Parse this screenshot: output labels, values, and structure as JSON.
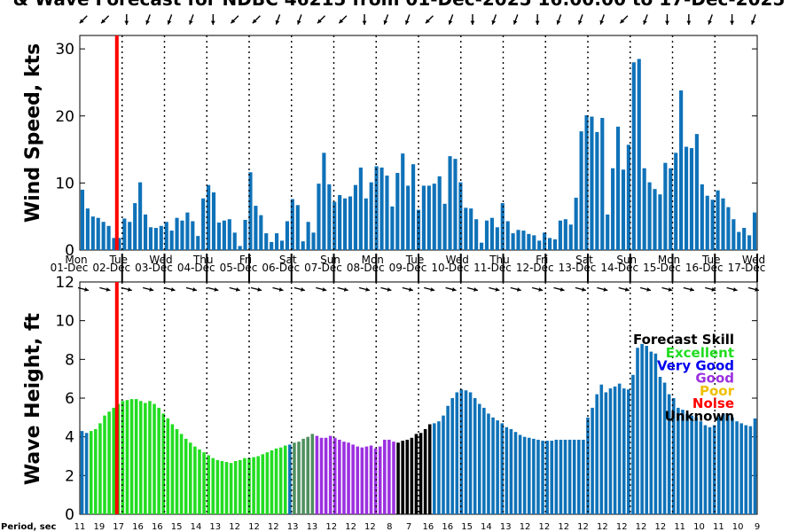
{
  "title": "& Wave Forecast for NDBC 46215 from 01-Dec-2025 16:00:00 to 17-Dec-2025",
  "period_label": "Period, sec",
  "colors": {
    "wind_bar": "#0f72b8",
    "now_line": "#ff0000",
    "excellent": "#22dd22",
    "very_good": "#0000ee",
    "good": "#9b30e0",
    "poor": "#f0c000",
    "noise": "#ff0000",
    "unknown": "#000000",
    "transition": "#4f8f5f"
  },
  "days": [
    {
      "name": "Mon",
      "date": "01-Dec"
    },
    {
      "name": "Tue",
      "date": "02-Dec"
    },
    {
      "name": "Wed",
      "date": "03-Dec"
    },
    {
      "name": "Thu",
      "date": "04-Dec"
    },
    {
      "name": "Fri",
      "date": "05-Dec"
    },
    {
      "name": "Sat",
      "date": "06-Dec"
    },
    {
      "name": "Sun",
      "date": "07-Dec"
    },
    {
      "name": "Mon",
      "date": "08-Dec"
    },
    {
      "name": "Tue",
      "date": "09-Dec"
    },
    {
      "name": "Wed",
      "date": "10-Dec"
    },
    {
      "name": "Thu",
      "date": "11-Dec"
    },
    {
      "name": "Fri",
      "date": "12-Dec"
    },
    {
      "name": "Sat",
      "date": "13-Dec"
    },
    {
      "name": "Sun",
      "date": "14-Dec"
    },
    {
      "name": "Mon",
      "date": "15-Dec"
    },
    {
      "name": "Tue",
      "date": "16-Dec"
    },
    {
      "name": "Wed",
      "date": "17-Dec"
    }
  ],
  "legend": {
    "title": "Forecast Skill",
    "items": [
      {
        "label": "Excellent",
        "color": "#22dd22"
      },
      {
        "label": "Very Good",
        "color": "#0000ee"
      },
      {
        "label": "Good",
        "color": "#9b30e0"
      },
      {
        "label": "Poor",
        "color": "#f0c000"
      },
      {
        "label": "Noise",
        "color": "#ff0000"
      },
      {
        "label": "Unknown",
        "color": "#000000"
      }
    ]
  },
  "periods": [
    "11",
    "19",
    "17",
    "16",
    "16",
    "15",
    "14",
    "13",
    "12",
    "12",
    "12",
    "13",
    "13",
    "12",
    "12",
    "12",
    "8",
    "7",
    "16",
    "16",
    "15",
    "14",
    "13",
    "12",
    "12",
    "12",
    "12",
    "12",
    "12",
    "12",
    "12",
    "11",
    "10",
    "11",
    "10",
    "9"
  ],
  "chart_data": [
    {
      "type": "bar",
      "name": "wind",
      "ylabel": "Wind Speed, kts",
      "ylim": [
        0,
        32
      ],
      "yticks": [
        0,
        10,
        20,
        30
      ],
      "x_start_hour": 16,
      "x_step_hours": 3,
      "now_hour": 21,
      "values": [
        9,
        6.2,
        5,
        4.8,
        4.2,
        3.6,
        1.8,
        1.8,
        4.7,
        4.2,
        7,
        10.1,
        5.3,
        3.4,
        3.3,
        3.6,
        4.2,
        2.9,
        4.8,
        4.4,
        5.6,
        4.3,
        2.1,
        7.7,
        9.7,
        8.6,
        4.1,
        4.4,
        4.6,
        2.6,
        0.6,
        4.5,
        11.6,
        6.6,
        5.2,
        2.5,
        1.2,
        2.5,
        1.4,
        4.3,
        7.6,
        6.7,
        1.3,
        4.2,
        2.6,
        9.9,
        14.5,
        9.8,
        7.2,
        8.2,
        7.7,
        8,
        9.7,
        12.3,
        7.7,
        10.1,
        12.5,
        12.3,
        11.1,
        6.5,
        11.5,
        14.4,
        9.6,
        12.8,
        6,
        9.6,
        9.6,
        9.9,
        11,
        6.9,
        14,
        13.6,
        10.1,
        6.3,
        6.2,
        4.6,
        1.1,
        4.4,
        4.8,
        3.4,
        7,
        4.3,
        2.5,
        3,
        2.9,
        2.4,
        2.2,
        1.4,
        2.6,
        1.8,
        1.6,
        4.4,
        4.6,
        3.8,
        7.8,
        17.7,
        20.1,
        19.9,
        17.6,
        19.7,
        5.3,
        12.2,
        18.4,
        12,
        15.7,
        28,
        28.5,
        12.2,
        10.1,
        9.1,
        8.3,
        13,
        12.2,
        14.5,
        23.8,
        15.4,
        15.2,
        17.3,
        9.8,
        8.1,
        7.5,
        8.9,
        7.7,
        6.4,
        4.6,
        2.7,
        3.3,
        2.2,
        5.6
      ],
      "directions": [
        45,
        45,
        0,
        20,
        20,
        20,
        0,
        45,
        45,
        20,
        20,
        45,
        45,
        0,
        20,
        20,
        45,
        20,
        0,
        20,
        20,
        0,
        20,
        20,
        20,
        45,
        20,
        0,
        0,
        20,
        0,
        20,
        20,
        45,
        20,
        20,
        0,
        45,
        20,
        0,
        20,
        20,
        20,
        0,
        20,
        20,
        20,
        20,
        20,
        0,
        45,
        20,
        20,
        20,
        0,
        45
      ]
    },
    {
      "type": "bar",
      "name": "waves",
      "ylabel": "Wave Height, ft",
      "ylim": [
        0,
        12
      ],
      "yticks": [
        0,
        2,
        4,
        6,
        8,
        10,
        12
      ],
      "x_start_hour": 16,
      "x_step_hours": 3,
      "values": [
        4.3,
        4.2,
        4.3,
        4.4,
        4.7,
        5.1,
        5.3,
        5.5,
        5.7,
        5.85,
        5.9,
        5.95,
        5.95,
        5.85,
        5.75,
        5.85,
        5.7,
        5.5,
        5.2,
        4.95,
        4.65,
        4.4,
        4.15,
        3.9,
        3.7,
        3.5,
        3.35,
        3.2,
        3.05,
        2.9,
        2.8,
        2.75,
        2.7,
        2.65,
        2.75,
        2.8,
        2.9,
        2.9,
        2.95,
        3,
        3.1,
        3.2,
        3.3,
        3.4,
        3.45,
        3.55,
        3.6,
        3.7,
        3.75,
        3.9,
        4,
        4.15,
        4.05,
        3.95,
        3.95,
        4.05,
        3.95,
        3.85,
        3.75,
        3.7,
        3.6,
        3.5,
        3.45,
        3.5,
        3.55,
        3.4,
        3.5,
        3.85,
        3.85,
        3.75,
        3.7,
        3.8,
        3.85,
        3.95,
        4.15,
        4.2,
        4.4,
        4.65,
        4.7,
        4.8,
        5.1,
        5.6,
        6,
        6.3,
        6.45,
        6.4,
        6.3,
        6,
        5.7,
        5.5,
        5.2,
        5,
        4.85,
        4.7,
        4.5,
        4.4,
        4.25,
        4.1,
        4,
        3.95,
        3.9,
        3.85,
        3.8,
        3.8,
        3.8,
        3.85,
        3.85,
        3.85,
        3.85,
        3.85,
        3.85,
        3.85,
        5,
        5.5,
        6.2,
        6.7,
        6.3,
        6.5,
        6.6,
        6.75,
        6.5,
        6.45,
        7.2,
        8.6,
        8.8,
        8.7,
        8.4,
        8.3,
        7.1,
        6.8,
        6.2,
        6,
        5.5,
        5.4,
        5.2,
        5.1,
        5,
        4.8,
        4.6,
        4.5,
        4.6,
        5.1,
        5.2,
        5.2,
        5,
        4.8,
        4.7,
        4.6,
        4.55,
        4.95
      ],
      "skill_blocks": [
        {
          "skill": "Excellent",
          "from": 0,
          "to": 1
        },
        {
          "skill": "Very Good",
          "from": 0,
          "to": 1
        },
        {
          "skill": "Excellent",
          "from": 2,
          "to": 39
        },
        {
          "skill": "Transition",
          "from": 40,
          "to": 44
        },
        {
          "skill": "Good",
          "from": 45,
          "to": 59
        },
        {
          "skill": "Unknown",
          "from": 60,
          "to": 66
        },
        {
          "skill": "Very Good",
          "from": 67,
          "to": 127
        }
      ]
    }
  ]
}
